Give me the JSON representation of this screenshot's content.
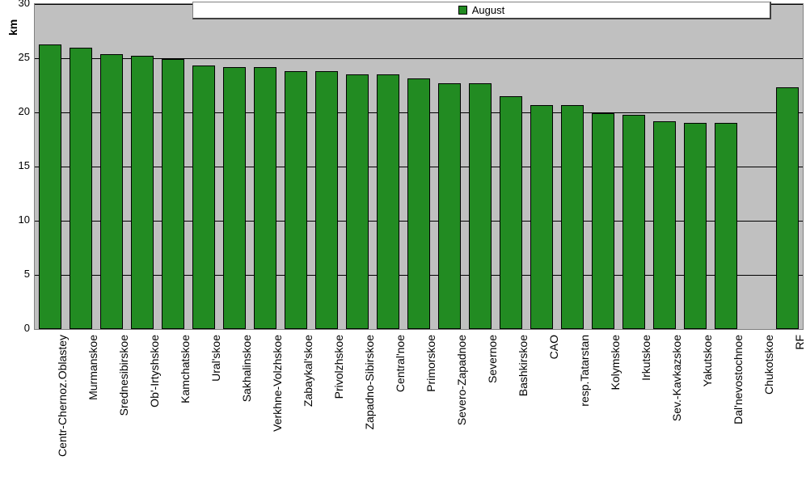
{
  "chart": {
    "type": "bar",
    "legend_label": "August",
    "y_axis_label": "km",
    "ylim": [
      0,
      30
    ],
    "ytick_step": 5,
    "yticks": [
      0,
      5,
      10,
      15,
      20,
      25,
      30
    ],
    "bar_color": "#228b22",
    "bar_border_color": "#000000",
    "plot_background": "#c0c0c0",
    "grid_color": "#000000",
    "legend_background": "#ffffff",
    "font_family": "Arial",
    "title_fontsize": 14,
    "label_fontsize": 13,
    "xlabel_fontsize": 14,
    "categories": [
      "Centr-Chernoz.Oblastey",
      "Murmanskoe",
      "Srednesibirskoe",
      "Ob'-Irtyshskoe",
      "Kamchatskoe",
      "Ural'skoe",
      "Sakhalinskoe",
      "Verkhne-Volzhskoe",
      "Zabaykal'skoe",
      "Privolzhskoe",
      "Zapadno-Sibirskoe",
      "Central'noe",
      "Primorskoe",
      "Severo-Zapadnoe",
      "Severnoe",
      "Bashkirskoe",
      "CAO",
      "resp.Tatarstan",
      "Kolymskoe",
      "Irkutskoe",
      "Sev.-Kavkazskoe",
      "Yakutskoe",
      "Dal'nevostochnoe",
      "Chukotskoe",
      "RF"
    ],
    "values": [
      26.3,
      26.0,
      25.4,
      25.2,
      24.9,
      24.3,
      24.2,
      24.2,
      23.8,
      23.8,
      23.5,
      23.5,
      23.1,
      22.7,
      22.7,
      21.5,
      20.7,
      20.7,
      19.9,
      19.8,
      19.2,
      19.0,
      19.0,
      0,
      22.3
    ]
  }
}
